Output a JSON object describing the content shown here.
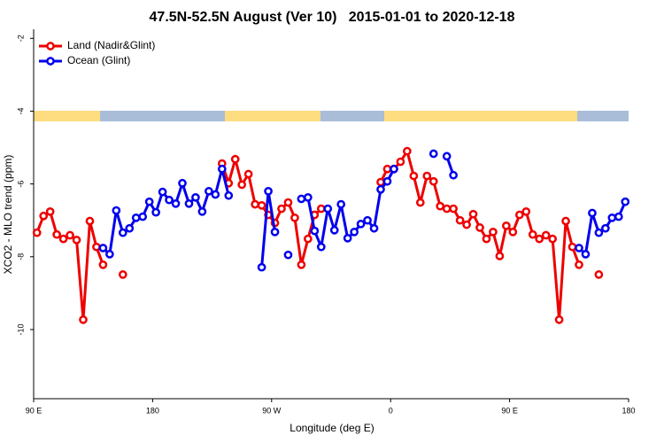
{
  "chart_data": {
    "type": "line",
    "title": "47.5N-52.5N August (Ver 10)   2015-01-01 to 2020-12-18",
    "x_label": "Longitude (deg E)",
    "y_label": "XCO2 - MLO trend (ppm)",
    "xlim": [
      90,
      540
    ],
    "ylim": [
      -11.9,
      -1.75
    ],
    "xticks": [
      {
        "value": 90,
        "label": "90 E"
      },
      {
        "value": 180,
        "label": "180"
      },
      {
        "value": 270,
        "label": "90 W"
      },
      {
        "value": 360,
        "label": "0"
      },
      {
        "value": 450,
        "label": "90 E"
      },
      {
        "value": 540,
        "label": "180"
      }
    ],
    "yticks": [
      -2,
      -4,
      -6,
      -8,
      -10
    ],
    "legend": "top-left",
    "x": [
      92.5,
      97.5,
      102.5,
      107.5,
      112.5,
      117.5,
      122.5,
      127.5,
      132.5,
      137.5,
      142.5,
      147.5,
      152.5,
      157.5,
      162.5,
      167.5,
      172.5,
      177.5,
      182.5,
      187.5,
      192.5,
      197.5,
      202.5,
      207.5,
      212.5,
      217.5,
      222.5,
      227.5,
      232.5,
      237.5,
      242.5,
      247.5,
      252.5,
      257.5,
      262.5,
      267.5,
      272.5,
      277.5,
      282.5,
      287.5,
      292.5,
      297.5,
      302.5,
      307.5,
      312.5,
      317.5,
      322.5,
      327.5,
      332.5,
      337.5,
      342.5,
      347.5,
      352.5,
      357.5,
      362.5,
      367.5,
      372.5,
      377.5,
      382.5,
      387.5,
      392.5,
      397.5,
      402.5,
      407.5,
      412.5,
      417.5,
      422.5,
      427.5,
      432.5,
      437.5,
      442.5,
      447.5,
      452.5,
      457.5,
      462.5,
      467.5,
      472.5,
      477.5,
      482.5,
      487.5,
      492.5,
      497.5,
      502.5,
      507.5,
      512.5,
      517.5,
      522.5,
      527.5,
      532.5,
      537.5
    ],
    "series": [
      {
        "name": "Land (Nadir&Glint)",
        "color": "#ee0000",
        "values": [
          -7.34,
          -6.88,
          -6.76,
          -7.39,
          -7.51,
          -7.41,
          -7.54,
          -9.73,
          -7.02,
          -7.73,
          -8.22,
          null,
          null,
          -8.49,
          null,
          null,
          null,
          null,
          null,
          null,
          null,
          null,
          null,
          null,
          null,
          null,
          null,
          null,
          -5.44,
          -5.98,
          -5.32,
          -6.02,
          -5.73,
          -6.56,
          -6.59,
          -6.85,
          -7.07,
          -6.68,
          -6.51,
          -6.93,
          -8.22,
          -7.51,
          -6.85,
          -6.68,
          null,
          null,
          null,
          null,
          null,
          null,
          null,
          null,
          -5.95,
          -5.59,
          -5.59,
          -5.39,
          -5.1,
          -5.78,
          -6.51,
          -5.78,
          -5.93,
          -6.61,
          -6.68,
          -6.68,
          -7.0,
          -7.12,
          -6.83,
          -7.2,
          -7.51,
          -7.32,
          -7.98,
          -7.15,
          -7.32,
          -6.85,
          -6.76,
          -7.39,
          -7.51,
          -7.41,
          -7.51,
          -9.73,
          -7.02,
          -7.73,
          -8.22,
          null,
          null,
          -8.49,
          null,
          null,
          null,
          null
        ]
      },
      {
        "name": "Ocean (Glint)",
        "color": "#0000ee",
        "values": [
          null,
          null,
          null,
          null,
          null,
          null,
          null,
          null,
          null,
          null,
          -7.76,
          -7.93,
          -6.73,
          -7.34,
          -7.22,
          -6.93,
          -6.9,
          -6.49,
          -6.78,
          -6.22,
          -6.44,
          -6.54,
          -5.98,
          -6.54,
          -6.37,
          -6.76,
          -6.2,
          -6.29,
          -5.59,
          -6.32,
          null,
          null,
          null,
          null,
          -8.29,
          -6.2,
          -7.32,
          null,
          -7.95,
          null,
          -6.41,
          -6.37,
          -7.29,
          -7.73,
          -6.68,
          -7.27,
          -6.56,
          -7.49,
          -7.32,
          -7.1,
          -7.0,
          -7.22,
          -6.15,
          -5.93,
          -5.59,
          null,
          null,
          null,
          null,
          null,
          -5.17,
          null,
          -5.24,
          -5.76,
          null,
          null,
          null,
          null,
          null,
          null,
          null,
          null,
          null,
          null,
          null,
          null,
          null,
          null,
          null,
          null,
          null,
          null,
          -7.76,
          -7.93,
          -6.8,
          -7.34,
          -7.22,
          -6.93,
          -6.9,
          -6.49
        ]
      }
    ]
  }
}
